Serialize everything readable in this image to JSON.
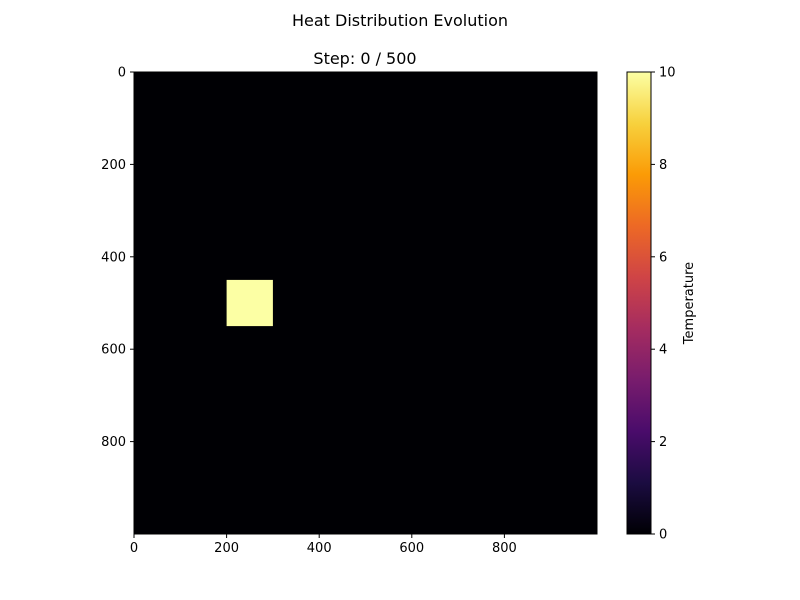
{
  "figure": {
    "suptitle": "Heat Distribution Evolution"
  },
  "chart_data": {
    "type": "heatmap",
    "title": "Step: 0 / 500",
    "xlabel": "",
    "ylabel": "",
    "grid_size": [
      1000,
      1000
    ],
    "xlim": [
      0,
      1000
    ],
    "ylim": [
      1000,
      0
    ],
    "xticks": [
      0,
      200,
      400,
      600,
      800
    ],
    "yticks": [
      0,
      200,
      400,
      600,
      800
    ],
    "background_value": 0,
    "hot_regions": [
      {
        "x0": 200,
        "x1": 300,
        "y0": 450,
        "y1": 550,
        "value": 10
      }
    ],
    "colormap": "inferno",
    "colormap_stops": [
      "#000004",
      "#1b0c41",
      "#4a0c6b",
      "#781c6d",
      "#a52c60",
      "#cf4446",
      "#ed6925",
      "#fb9b06",
      "#f7d13d",
      "#fcffa4"
    ],
    "colorbar": {
      "label": "Temperature",
      "range": [
        0,
        10
      ],
      "ticks": [
        0,
        2,
        4,
        6,
        8,
        10
      ]
    },
    "grid": false
  }
}
